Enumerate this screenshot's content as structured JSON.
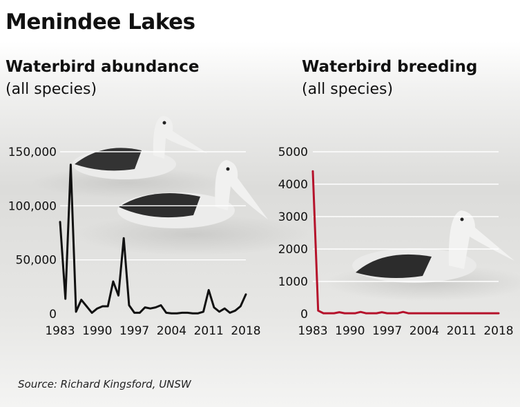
{
  "header": {
    "title": "Menindee Lakes"
  },
  "source": "Source: Richard Kingsford, UNSW",
  "colors": {
    "abundance_line": "#111111",
    "breeding_line": "#b5122b",
    "grid": "#ffffff"
  },
  "chart_data": [
    {
      "type": "line",
      "title": "Waterbird abundance",
      "subtitle": "(all species)",
      "x_ticks": [
        1983,
        1990,
        1997,
        2004,
        2011,
        2018
      ],
      "y_ticks": [
        0,
        50000,
        100000,
        150000
      ],
      "y_tick_labels": [
        "0",
        "50,000",
        "100,000",
        "150,000"
      ],
      "xlim": [
        1983,
        2018
      ],
      "ylim": [
        0,
        150000
      ],
      "grid": true,
      "series": [
        {
          "x": [
            1983,
            1984,
            1985,
            1986,
            1987,
            1988,
            1989,
            1990,
            1991,
            1992,
            1993,
            1994,
            1995,
            1996,
            1997,
            1998,
            1999,
            2000,
            2001,
            2002,
            2003,
            2004,
            2005,
            2006,
            2007,
            2008,
            2009,
            2010,
            2011,
            2012,
            2013,
            2014,
            2015,
            2016,
            2017,
            2018
          ],
          "values": [
            85000,
            14000,
            138000,
            2000,
            13000,
            7000,
            1000,
            5000,
            7000,
            7000,
            30000,
            17000,
            70000,
            8000,
            1000,
            1000,
            6000,
            5000,
            6000,
            8000,
            1000,
            500,
            500,
            1000,
            1000,
            500,
            500,
            2000,
            22000,
            6000,
            2000,
            5000,
            1000,
            3000,
            7000,
            18000
          ]
        }
      ]
    },
    {
      "type": "line",
      "title": "Waterbird breeding",
      "subtitle": "(all species)",
      "x_ticks": [
        1983,
        1990,
        1997,
        2004,
        2011,
        2018
      ],
      "y_ticks": [
        0,
        1000,
        2000,
        3000,
        4000,
        5000
      ],
      "y_tick_labels": [
        "0",
        "1000",
        "2000",
        "3000",
        "4000",
        "5000"
      ],
      "xlim": [
        1983,
        2018
      ],
      "ylim": [
        0,
        5000
      ],
      "grid": true,
      "series": [
        {
          "x": [
            1983,
            1984,
            1985,
            1986,
            1987,
            1988,
            1989,
            1990,
            1991,
            1992,
            1993,
            1994,
            1995,
            1996,
            1997,
            1998,
            1999,
            2000,
            2001,
            2002,
            2003,
            2004,
            2005,
            2006,
            2007,
            2008,
            2009,
            2010,
            2011,
            2012,
            2013,
            2014,
            2015,
            2016,
            2017,
            2018
          ],
          "values": [
            4400,
            100,
            20,
            20,
            20,
            50,
            20,
            20,
            20,
            60,
            20,
            20,
            20,
            50,
            20,
            20,
            20,
            60,
            20,
            20,
            20,
            20,
            20,
            20,
            20,
            20,
            20,
            20,
            20,
            20,
            20,
            20,
            20,
            20,
            20,
            20
          ]
        }
      ]
    }
  ]
}
